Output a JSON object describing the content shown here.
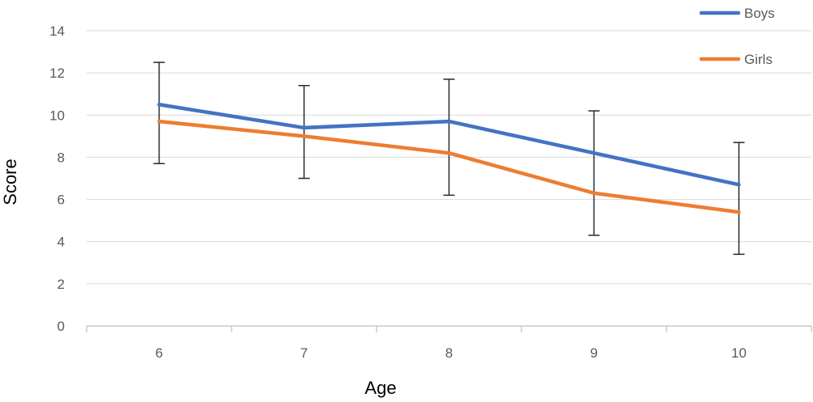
{
  "chart_data": {
    "type": "line",
    "xlabel": "Age",
    "ylabel": "Score",
    "categories": [
      "6",
      "7",
      "8",
      "9",
      "10"
    ],
    "ylim": [
      0,
      14
    ],
    "yticks": [
      "0",
      "2",
      "4",
      "6",
      "8",
      "10",
      "12",
      "14"
    ],
    "grid": true,
    "legend_position": "top-right",
    "series": [
      {
        "name": "Boys",
        "color": "#4472C4",
        "values": [
          10.5,
          9.4,
          9.7,
          8.2,
          6.7
        ]
      },
      {
        "name": "Girls",
        "color": "#ED7D31",
        "values": [
          9.7,
          9.0,
          8.2,
          6.3,
          5.4
        ]
      }
    ],
    "error_bars": {
      "color": "#1F2A36",
      "low": [
        7.7,
        7.0,
        6.2,
        4.3,
        3.4
      ],
      "high": [
        12.5,
        11.4,
        11.7,
        10.2,
        8.7
      ]
    }
  }
}
